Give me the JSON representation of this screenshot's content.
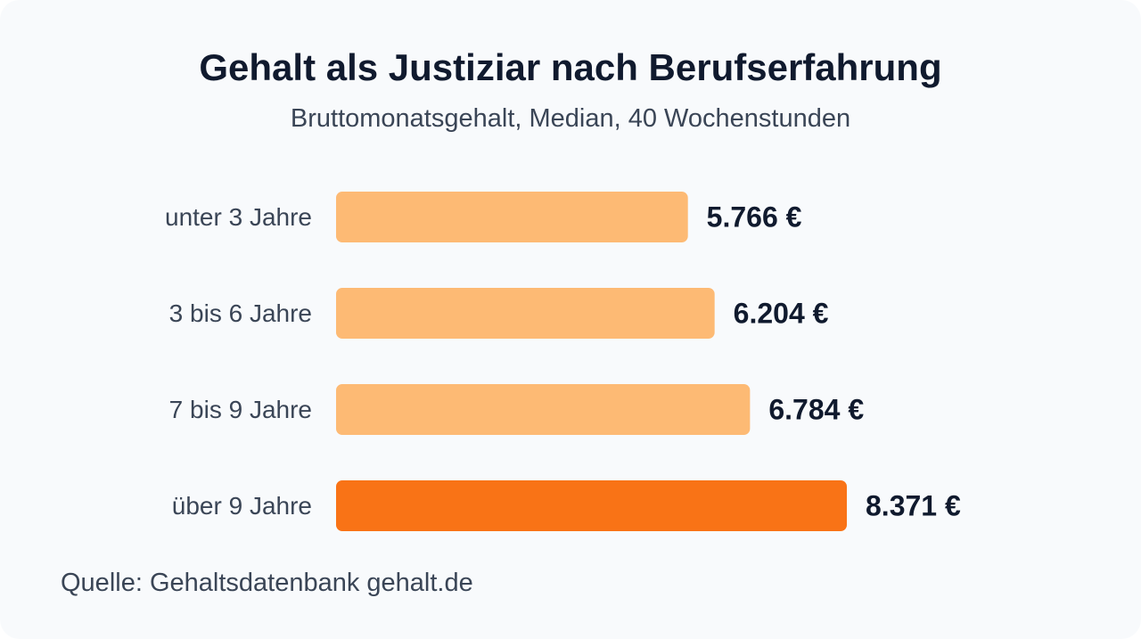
{
  "chart_data": {
    "type": "bar",
    "orientation": "horizontal",
    "title": "Gehalt als Justiziar nach Berufserfahrung",
    "subtitle": "Bruttomonatsgehalt, Median, 40 Wochenstunden",
    "categories": [
      "unter 3 Jahre",
      "3 bis 6 Jahre",
      "7 bis 9 Jahre",
      "über 9 Jahre"
    ],
    "values": [
      5766,
      6204,
      6784,
      8371
    ],
    "value_labels": [
      "5.766 €",
      "6.204 €",
      "6.784 €",
      "8.371 €"
    ],
    "colors": [
      "#fdba74",
      "#fdba74",
      "#fdba74",
      "#f97316"
    ],
    "xlim": [
      0,
      8371
    ],
    "grid": false,
    "legend": "none",
    "source": "Quelle: Gehaltsdatenbank gehalt.de"
  }
}
